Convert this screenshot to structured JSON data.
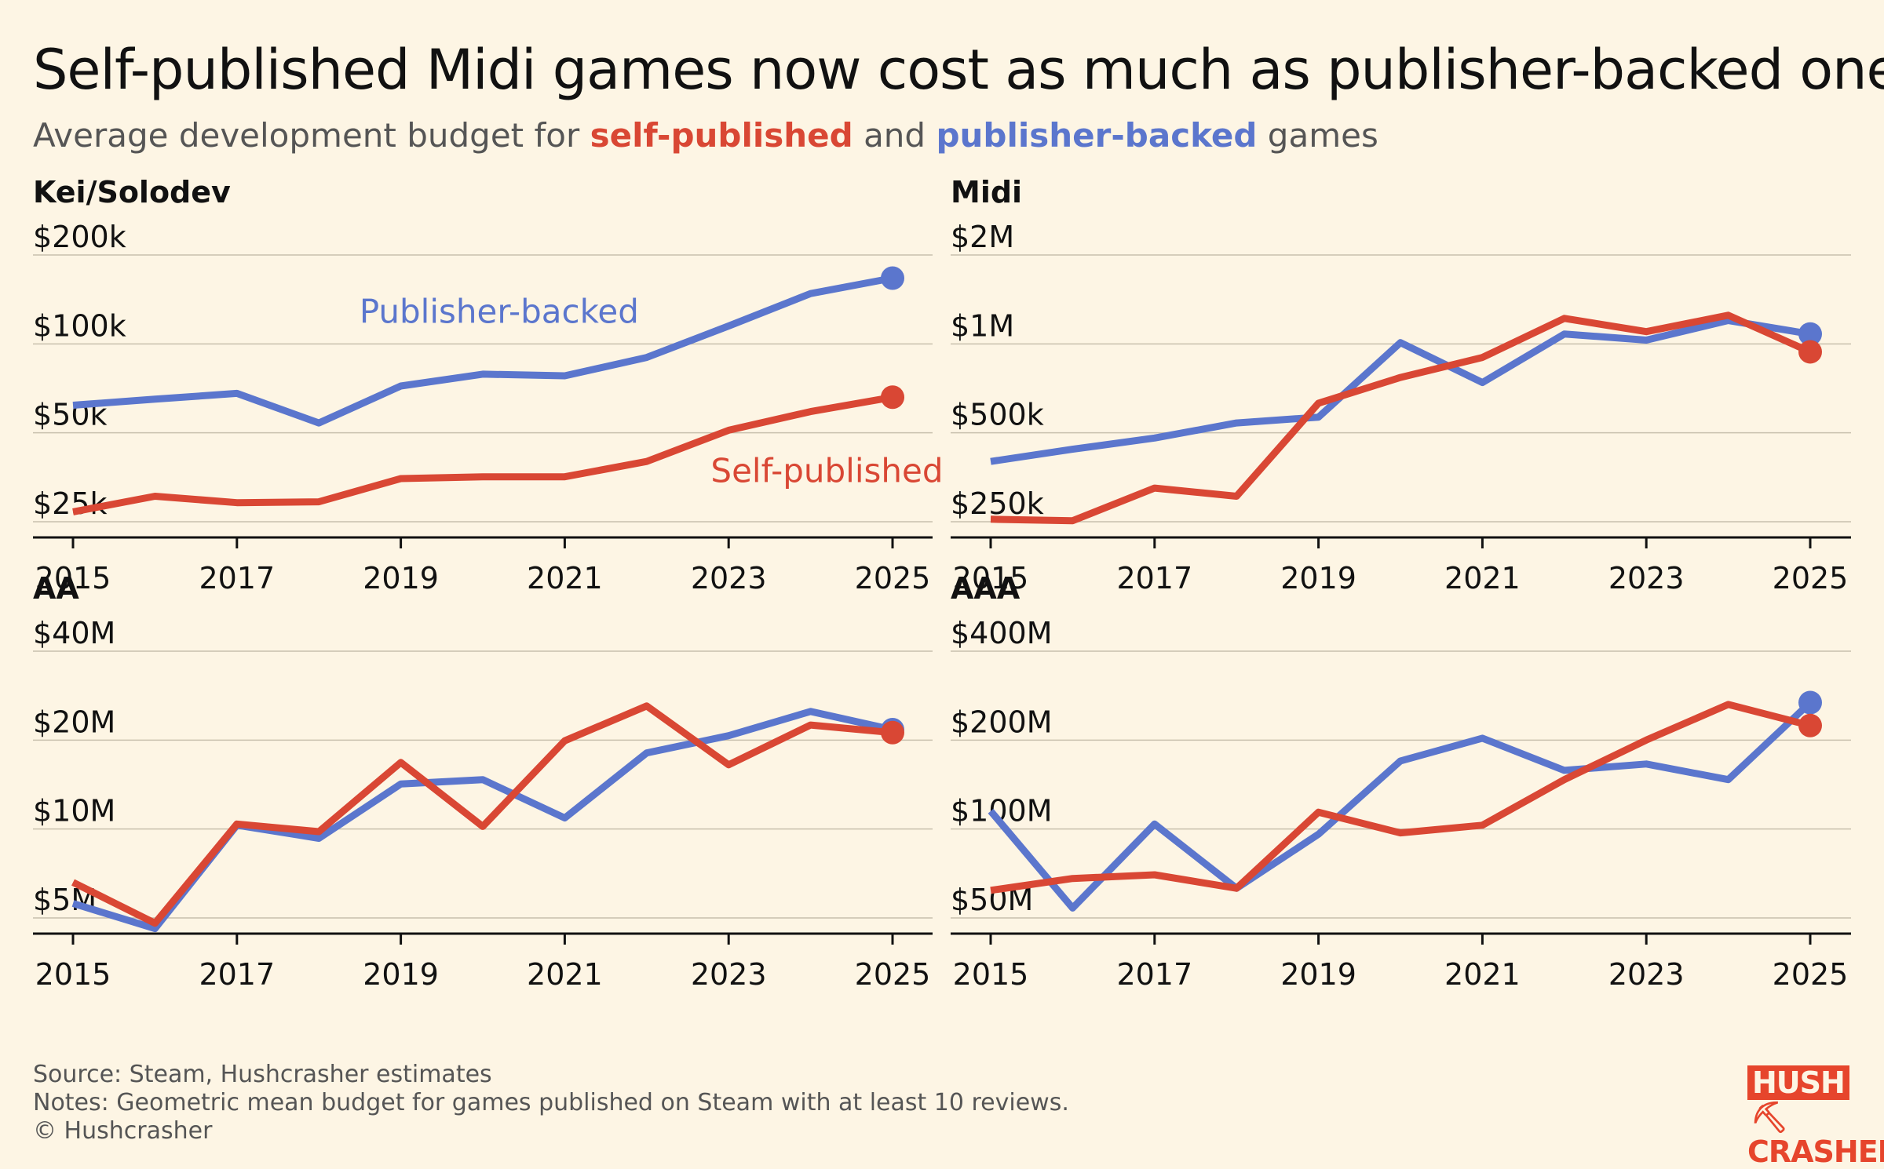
{
  "title": "Self-published Midi games now cost as much as publisher-backed ones",
  "subtitle": {
    "pre": "Average development budget for ",
    "self": "self-published",
    "mid": " and ",
    "pub": "publisher-backed",
    "post": " games"
  },
  "colors": {
    "self": "#d94734",
    "publisher": "#5b76cd",
    "background": "#fdf5e4",
    "grid": "#c8c0ad"
  },
  "footer": {
    "source": "Source: Steam, Hushcrasher estimates",
    "notes": "Notes: Geometric mean budget for games published on Steam with at least 10 reviews.",
    "copyright": "© Hushcrasher"
  },
  "logo": {
    "line1": "HUSH",
    "line2": "CRASHER",
    "icon": "pickaxe-icon"
  },
  "chart_data": [
    {
      "type": "line",
      "title": "Kei/Solodev",
      "scale": "log",
      "x": [
        2015,
        2016,
        2017,
        2018,
        2019,
        2020,
        2021,
        2022,
        2023,
        2024,
        2025
      ],
      "ylim": [
        22000,
        215000
      ],
      "yticks": [
        200000,
        100000,
        50000,
        25000
      ],
      "ytick_labels": [
        "$200k",
        "$100k",
        "$50k",
        "$25k"
      ],
      "xticks": [
        2015,
        2017,
        2019,
        2021,
        2023,
        2025
      ],
      "series": [
        {
          "name": "Publisher-backed",
          "key": "publisher",
          "values": [
            62000,
            65000,
            68000,
            54000,
            72000,
            79000,
            78000,
            90000,
            115000,
            148000,
            167000
          ]
        },
        {
          "name": "Self-published",
          "key": "self",
          "values": [
            27000,
            30500,
            29000,
            29200,
            35000,
            35500,
            35500,
            40000,
            51000,
            59000,
            66000
          ]
        }
      ],
      "labels": [
        {
          "text": "Publisher-backed",
          "series": "publisher",
          "x": 2020.2,
          "y": 118000
        },
        {
          "text": "Self-published",
          "series": "self",
          "x": 2024.2,
          "y": 34000
        }
      ]
    },
    {
      "type": "line",
      "title": "Midi",
      "scale": "log",
      "x": [
        2015,
        2016,
        2017,
        2018,
        2019,
        2020,
        2021,
        2022,
        2023,
        2024,
        2025
      ],
      "ylim": [
        220000,
        2150000
      ],
      "yticks": [
        2000000,
        1000000,
        500000,
        250000
      ],
      "ytick_labels": [
        "$2M",
        "$1M",
        "$500k",
        "$250k"
      ],
      "xticks": [
        2015,
        2017,
        2019,
        2021,
        2023,
        2025
      ],
      "series": [
        {
          "name": "Publisher-backed",
          "key": "publisher",
          "values": [
            400000,
            440000,
            480000,
            540000,
            565000,
            1010000,
            740000,
            1080000,
            1030000,
            1200000,
            1080000
          ]
        },
        {
          "name": "Self-published",
          "key": "self",
          "values": [
            255000,
            252000,
            325000,
            305000,
            630000,
            770000,
            900000,
            1220000,
            1100000,
            1250000,
            940000
          ]
        }
      ]
    },
    {
      "type": "line",
      "title": "AA",
      "scale": "log",
      "x": [
        2015,
        2016,
        2017,
        2018,
        2019,
        2020,
        2021,
        2022,
        2023,
        2024,
        2025
      ],
      "ylim": [
        4400000,
        43000000
      ],
      "yticks": [
        40000000,
        20000000,
        10000000,
        5000000
      ],
      "ytick_labels": [
        "$40M",
        "$20M",
        "$10M",
        "$5M"
      ],
      "xticks": [
        2015,
        2017,
        2019,
        2021,
        2023,
        2025
      ],
      "series": [
        {
          "name": "Publisher-backed",
          "key": "publisher",
          "values": [
            5600000,
            4600000,
            10300000,
            9300000,
            14200000,
            14700000,
            10900000,
            18100000,
            20700000,
            25000000,
            21700000
          ]
        },
        {
          "name": "Self-published",
          "key": "self",
          "values": [
            6600000,
            4800000,
            10400000,
            9800000,
            16800000,
            10200000,
            19900000,
            26100000,
            16500000,
            22500000,
            21200000
          ]
        }
      ]
    },
    {
      "type": "line",
      "title": "AAA",
      "scale": "log",
      "x": [
        2015,
        2016,
        2017,
        2018,
        2019,
        2020,
        2021,
        2022,
        2023,
        2024,
        2025
      ],
      "ylim": [
        44000000,
        430000000
      ],
      "yticks": [
        400000000,
        200000000,
        100000000,
        50000000
      ],
      "ytick_labels": [
        "$400M",
        "$200M",
        "$100M",
        "$50M"
      ],
      "xticks": [
        2015,
        2017,
        2019,
        2021,
        2023,
        2025
      ],
      "series": [
        {
          "name": "Publisher-backed",
          "key": "publisher",
          "values": [
            115000000,
            54000000,
            104000000,
            63000000,
            96000000,
            170000000,
            203000000,
            158000000,
            166000000,
            147000000,
            268000000
          ]
        },
        {
          "name": "Self-published",
          "key": "self",
          "values": [
            62000000,
            68000000,
            70000000,
            63000000,
            114000000,
            97000000,
            103000000,
            147000000,
            200000000,
            264000000,
            224000000
          ]
        }
      ]
    }
  ]
}
